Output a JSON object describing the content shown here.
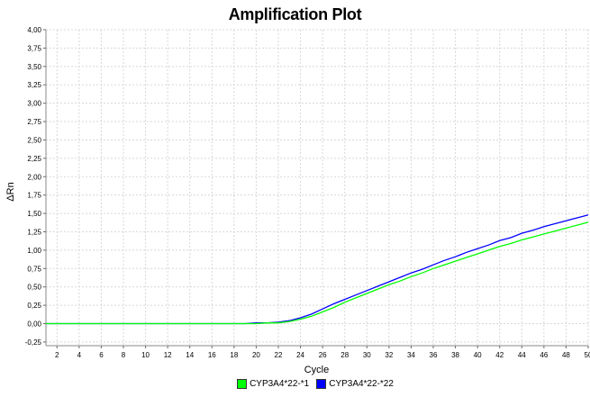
{
  "chart_data": {
    "type": "line",
    "title": "Amplification Plot",
    "xlabel": "Cycle",
    "ylabel": "ΔRn",
    "xlim": [
      1,
      50
    ],
    "ylim": [
      -0.3,
      4.0
    ],
    "x_ticks": [
      2,
      4,
      6,
      8,
      10,
      12,
      14,
      16,
      18,
      20,
      22,
      24,
      26,
      28,
      30,
      32,
      34,
      36,
      38,
      40,
      42,
      44,
      46,
      48,
      50
    ],
    "y_ticks": [
      -0.25,
      0,
      0.25,
      0.5,
      0.75,
      1.0,
      1.25,
      1.5,
      1.75,
      2.0,
      2.25,
      2.5,
      2.75,
      3.0,
      3.25,
      3.5,
      3.75,
      4.0
    ],
    "y_tick_labels": [
      "-0,25",
      "0,00",
      "0,25",
      "0,50",
      "0,75",
      "1,00",
      "1,25",
      "1,50",
      "1,75",
      "2,00",
      "2,25",
      "2,50",
      "2,75",
      "3,00",
      "3,25",
      "3,50",
      "3,75",
      "4,00"
    ],
    "grid": true,
    "legend_position": "bottom-center",
    "series": [
      {
        "name": "CYP3A4*22-*22",
        "color": "#0000ff",
        "x": [
          1,
          2,
          3,
          4,
          5,
          6,
          7,
          8,
          9,
          10,
          11,
          12,
          13,
          14,
          15,
          16,
          17,
          18,
          19,
          20,
          21,
          22,
          23,
          24,
          25,
          26,
          27,
          28,
          29,
          30,
          31,
          32,
          33,
          34,
          35,
          36,
          37,
          38,
          39,
          40,
          41,
          42,
          43,
          44,
          45,
          46,
          47,
          48,
          49,
          50
        ],
        "y": [
          0,
          0,
          0,
          0,
          0,
          0,
          0,
          0,
          0,
          0,
          0,
          0,
          0,
          0,
          0,
          0,
          0,
          0,
          0,
          0.01,
          0.01,
          0.02,
          0.04,
          0.08,
          0.13,
          0.2,
          0.27,
          0.33,
          0.39,
          0.45,
          0.51,
          0.57,
          0.63,
          0.69,
          0.74,
          0.8,
          0.86,
          0.91,
          0.97,
          1.02,
          1.07,
          1.13,
          1.17,
          1.23,
          1.27,
          1.32,
          1.36,
          1.4,
          1.44,
          1.48
        ]
      },
      {
        "name": "CYP3A4*22-*1",
        "color": "#00ff00",
        "x": [
          1,
          2,
          3,
          4,
          5,
          6,
          7,
          8,
          9,
          10,
          11,
          12,
          13,
          14,
          15,
          16,
          17,
          18,
          19,
          20,
          21,
          22,
          23,
          24,
          25,
          26,
          27,
          28,
          29,
          30,
          31,
          32,
          33,
          34,
          35,
          36,
          37,
          38,
          39,
          40,
          41,
          42,
          43,
          44,
          45,
          46,
          47,
          48,
          49,
          50
        ],
        "y": [
          0,
          0,
          0,
          0,
          0,
          0,
          0,
          0,
          0,
          0,
          0,
          0,
          0,
          0,
          0,
          0,
          0,
          0,
          0,
          0,
          0.01,
          0.01,
          0.03,
          0.06,
          0.1,
          0.16,
          0.22,
          0.29,
          0.35,
          0.41,
          0.47,
          0.53,
          0.58,
          0.64,
          0.69,
          0.75,
          0.8,
          0.85,
          0.9,
          0.95,
          1.0,
          1.05,
          1.09,
          1.14,
          1.18,
          1.22,
          1.26,
          1.3,
          1.34,
          1.38
        ]
      }
    ]
  },
  "legend": [
    {
      "label": "CYP3A4*22-*1",
      "color": "#00ff00"
    },
    {
      "label": "CYP3A4*22-*22",
      "color": "#0000ff"
    }
  ]
}
